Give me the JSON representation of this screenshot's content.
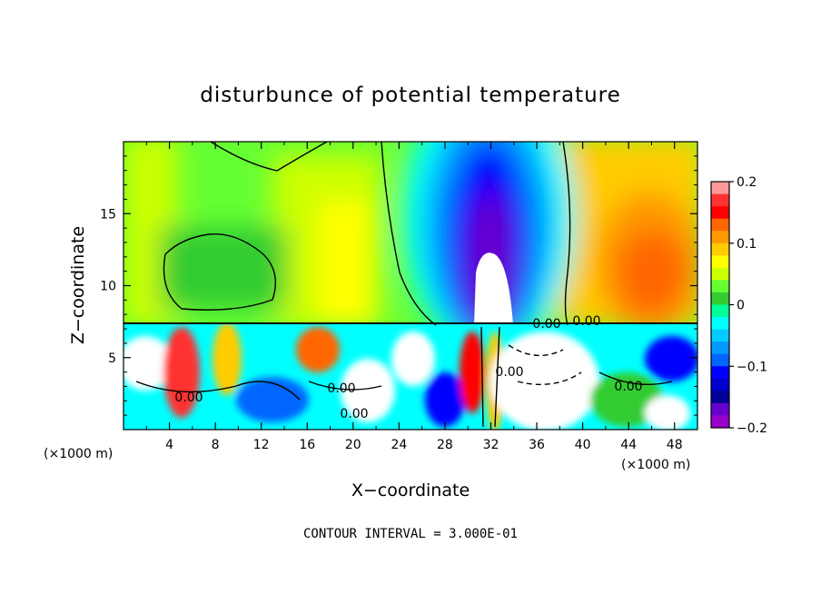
{
  "chart_data": {
    "type": "heatmap",
    "title": "disturbunce of potential temperature",
    "xlabel": "X−coordinate",
    "ylabel": "Z−coordinate",
    "x_unit_left": "(×1000 m)",
    "x_unit_right": "(×1000 m)",
    "xlim": [
      0,
      50
    ],
    "ylim": [
      0,
      20
    ],
    "x_ticks": [
      4,
      8,
      12,
      16,
      20,
      24,
      28,
      32,
      36,
      40,
      44,
      48
    ],
    "x_tick_labels": [
      "4",
      "8",
      "12",
      "16",
      "20",
      "24",
      "28",
      "32",
      "36",
      "40",
      "44",
      "48"
    ],
    "y_ticks": [
      5,
      10,
      15
    ],
    "y_tick_labels": [
      "5",
      "10",
      "15"
    ],
    "colorbar": {
      "min": -0.2,
      "max": 0.2,
      "ticks": [
        0.2,
        0.1,
        0,
        -0.1,
        -0.2
      ],
      "tick_labels": [
        "0.2",
        "0.1",
        "0",
        "−0.1",
        "−0.2"
      ],
      "colors": [
        "#ff9999",
        "#ff3333",
        "#ff0000",
        "#ff6600",
        "#ff9900",
        "#ffcc00",
        "#ffff00",
        "#ccff00",
        "#66ff33",
        "#33cc33",
        "#00ff99",
        "#00ffff",
        "#00ccff",
        "#0099ff",
        "#0066ff",
        "#0000ff",
        "#0000cc",
        "#000099",
        "#6600cc",
        "#9900cc"
      ]
    },
    "contour_labels": [
      "0.00",
      "0.00",
      "0.00",
      "0.00",
      "0.00",
      "0.00",
      "0.00"
    ],
    "contour_interval_text": "CONTOUR INTERVAL = 3.000E-01",
    "grid": false,
    "legend": "colorbar-right"
  }
}
